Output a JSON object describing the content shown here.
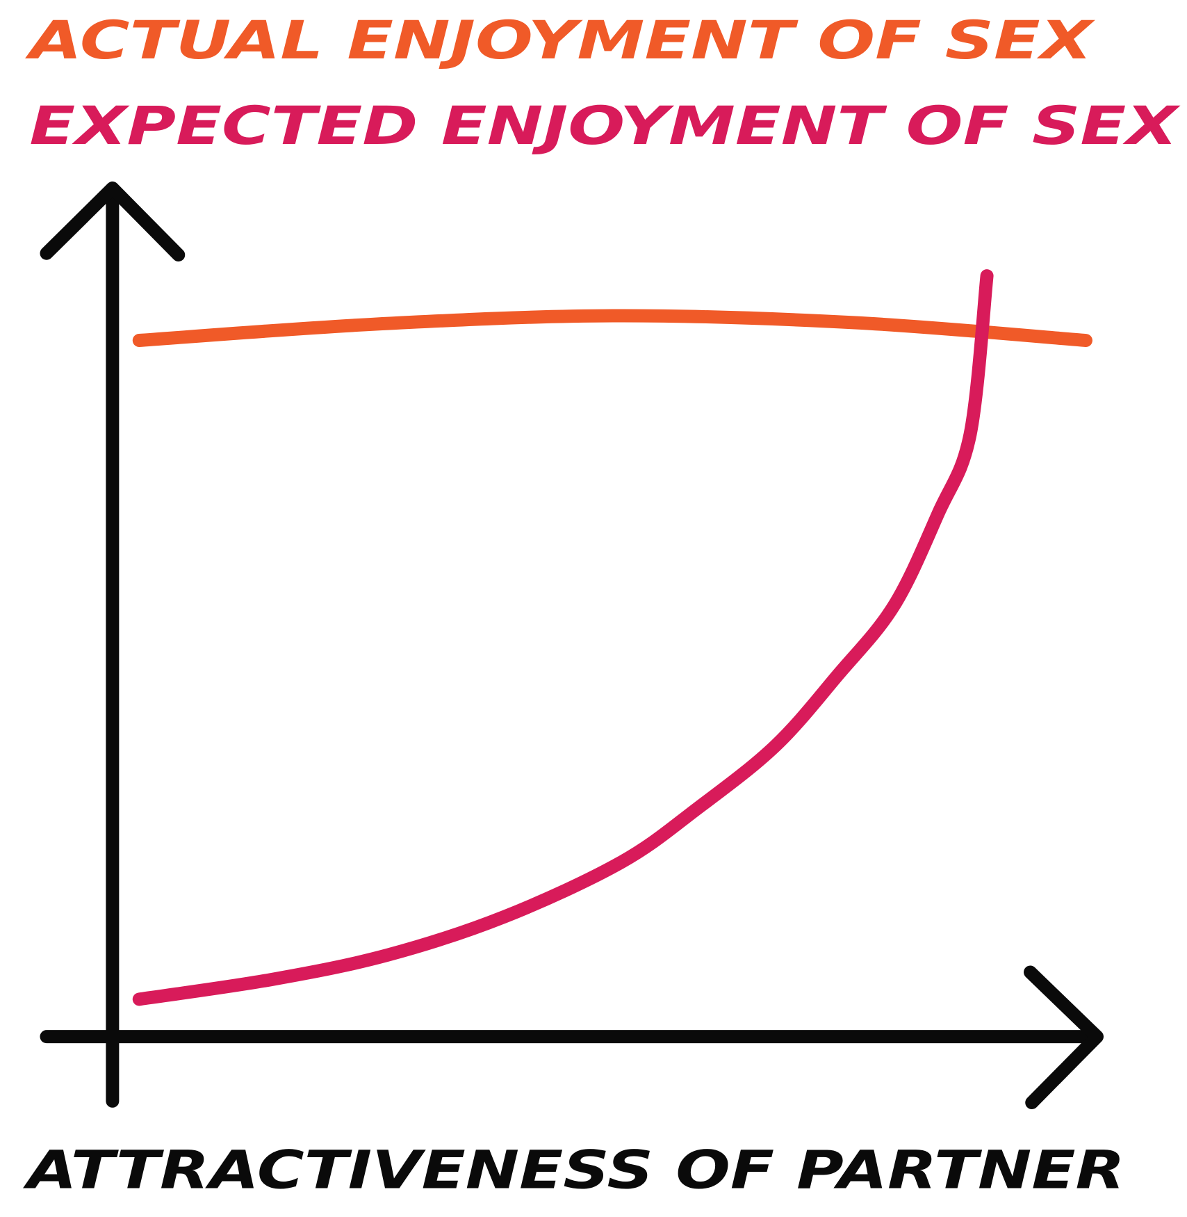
{
  "chart_data": {
    "type": "line",
    "xlabel": "ATTRACTIVENESS OF PARTNER",
    "xlim": [
      0,
      100
    ],
    "ylim": [
      0,
      100
    ],
    "series": [
      {
        "name": "ACTUAL ENJOYMENT OF SEX",
        "color": "#f05a28",
        "x": [
          2.7,
          26.3,
          50.6,
          74.9,
          98.4
        ],
        "values": [
          81.9,
          83.8,
          84.8,
          84.0,
          81.9
        ]
      },
      {
        "name": "EXPECTED ENJOYMENT OF SEX",
        "color": "#d81b5a",
        "x": [
          2.7,
          16,
          27.8,
          39.6,
          51.4,
          59.2,
          67,
          73.3,
          79,
          83.5,
          86.7,
          88.4
        ],
        "values": [
          4.4,
          6.7,
          9.6,
          14.1,
          20.5,
          26.9,
          34.2,
          42.5,
          50.7,
          61.6,
          70.8,
          89.5
        ]
      }
    ]
  }
}
